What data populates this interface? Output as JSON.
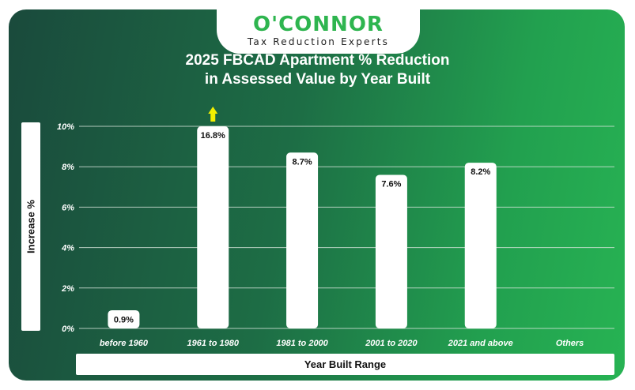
{
  "brand": {
    "name": "O'CONNOR",
    "tagline": "Tax Reduction Experts"
  },
  "chart_data": {
    "type": "bar",
    "title_line1": "2025 FBCAD Apartment % Reduction",
    "title_line2": "in Assessed Value by Year Built",
    "xlabel": "Year Built Range",
    "ylabel": "Increase %",
    "categories": [
      "before 1960",
      "1961 to 1980",
      "1981 to 2000",
      "2001 to 2020",
      "2021 and above",
      "Others"
    ],
    "values": [
      0.9,
      16.8,
      8.7,
      7.6,
      8.2,
      null
    ],
    "data_labels": [
      "0.9%",
      "16.8%",
      "8.7%",
      "7.6%",
      "8.2%",
      ""
    ],
    "yticks": [
      0,
      2,
      4,
      6,
      8,
      10
    ],
    "ytick_labels": [
      "0%",
      "2%",
      "4%",
      "6%",
      "8%",
      "10%"
    ],
    "ylim": [
      0,
      10
    ],
    "overflow_arrow_on": "1961 to 1980",
    "grid": true,
    "colors": {
      "bar": "#ffffff",
      "grid": "#d9e6dd",
      "text": "#ffffff",
      "label_text": "#111111",
      "arrow": "#f2ee00",
      "brand_green": "#2eb54f"
    }
  }
}
